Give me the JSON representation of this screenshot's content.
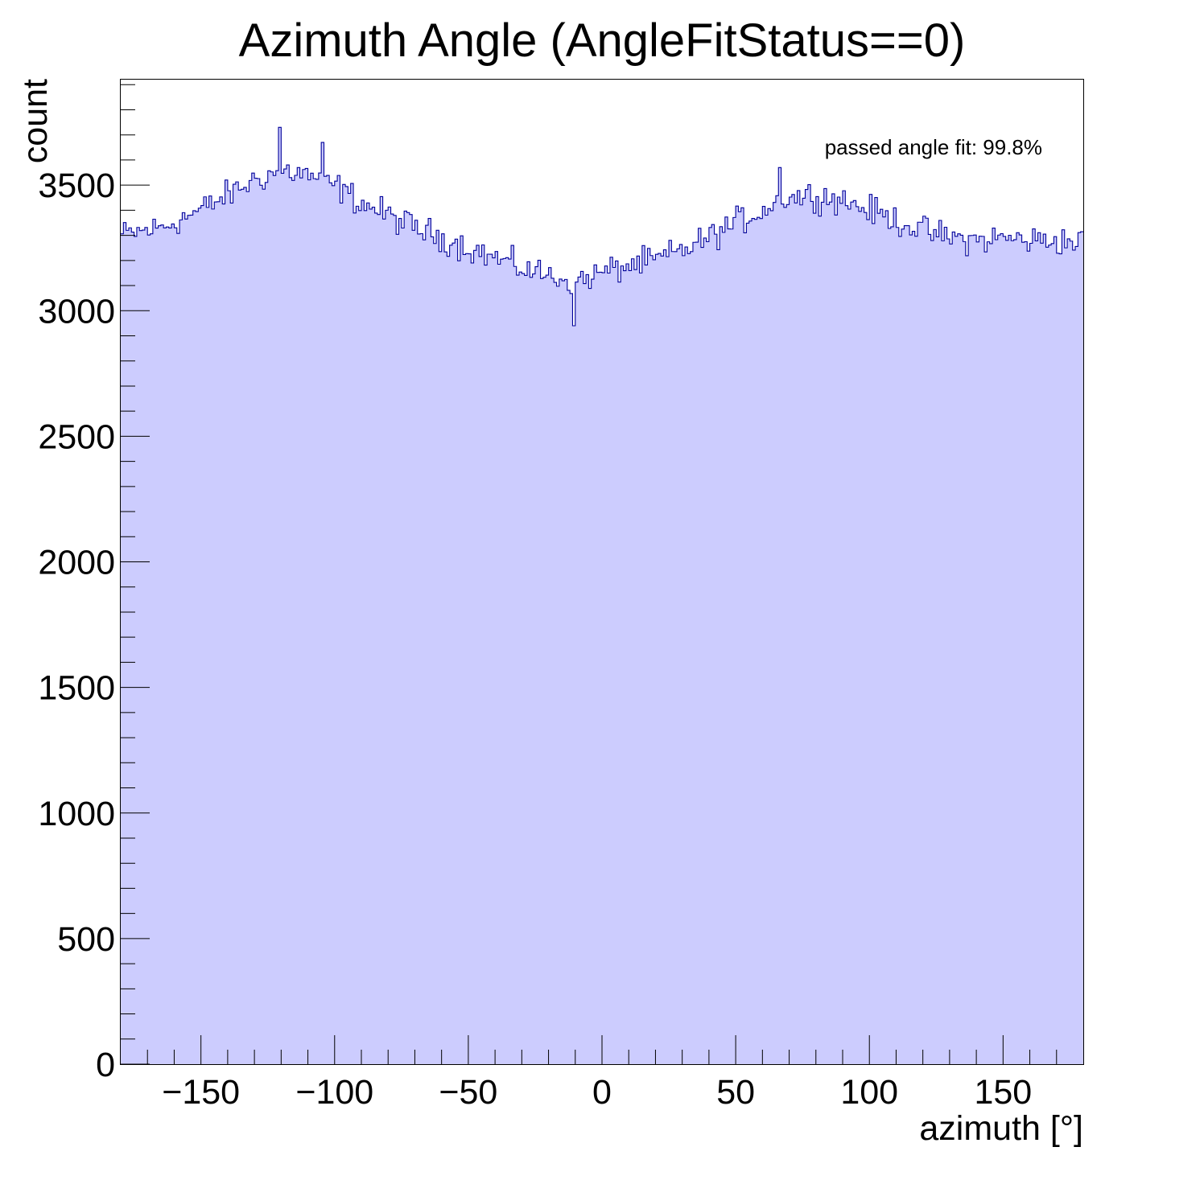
{
  "chart_data": {
    "type": "histogram",
    "title": "Azimuth Angle (AngleFitStatus==0)",
    "xlabel": "azimuth [°]",
    "ylabel": "count",
    "xlim": [
      -180,
      180
    ],
    "ylim": [
      0,
      3920
    ],
    "xticks": [
      -150,
      -100,
      -50,
      0,
      50,
      100,
      150
    ],
    "xtick_labels": [
      "−150",
      "−100",
      "−50",
      "0",
      "50",
      "100",
      "150"
    ],
    "yticks": [
      0,
      500,
      1000,
      1500,
      2000,
      2500,
      3000,
      3500
    ],
    "ytick_labels": [
      "0",
      "500",
      "1000",
      "1500",
      "2000",
      "2500",
      "3000",
      "3500"
    ],
    "grid": false,
    "annotation": "passed angle fit: 99.8%",
    "n_bins": 360,
    "fill_color": "#ccccfe",
    "line_color": "#000099",
    "trend": {
      "x": [
        -180,
        -165,
        -150,
        -140,
        -130,
        -120,
        -110,
        -100,
        -90,
        -80,
        -70,
        -60,
        -50,
        -40,
        -30,
        -20,
        -10,
        0,
        10,
        20,
        30,
        40,
        50,
        60,
        70,
        80,
        90,
        100,
        110,
        120,
        130,
        140,
        150,
        160,
        170,
        180
      ],
      "y": [
        3300,
        3330,
        3400,
        3460,
        3520,
        3560,
        3540,
        3500,
        3430,
        3380,
        3330,
        3290,
        3250,
        3210,
        3170,
        3140,
        3120,
        3150,
        3180,
        3200,
        3240,
        3290,
        3350,
        3400,
        3450,
        3460,
        3440,
        3400,
        3360,
        3320,
        3290,
        3280,
        3290,
        3280,
        3280,
        3270
      ]
    },
    "notable_points": [
      {
        "x": -120.5,
        "y": 3730
      },
      {
        "x": -104.5,
        "y": 3670
      },
      {
        "x": -10.5,
        "y": 2940
      },
      {
        "x": 66.5,
        "y": 3570
      }
    ]
  }
}
